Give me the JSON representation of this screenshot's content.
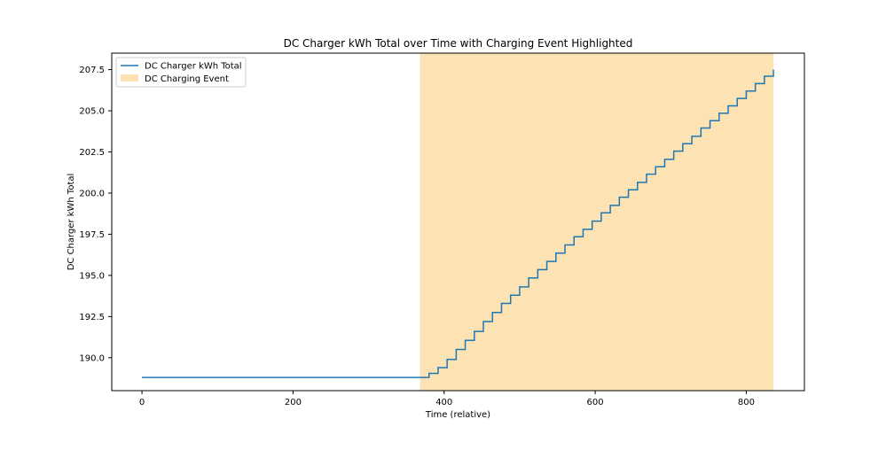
{
  "chart_data": {
    "type": "line",
    "title": "DC Charger kWh Total over Time with Charging Event Highlighted",
    "xlabel": "Time (relative)",
    "ylabel": "DC Charger kWh Total",
    "xlim": [
      -40,
      877
    ],
    "ylim": [
      188.0,
      208.5
    ],
    "xticks": [
      {
        "value": 0,
        "label": "0"
      },
      {
        "value": 200,
        "label": "200"
      },
      {
        "value": 400,
        "label": "400"
      },
      {
        "value": 600,
        "label": "600"
      },
      {
        "value": 800,
        "label": "800"
      }
    ],
    "yticks": [
      {
        "value": 190.0,
        "label": "190.0"
      },
      {
        "value": 192.5,
        "label": "192.5"
      },
      {
        "value": 195.0,
        "label": "195.0"
      },
      {
        "value": 197.5,
        "label": "197.5"
      },
      {
        "value": 200.0,
        "label": "200.0"
      },
      {
        "value": 202.5,
        "label": "202.5"
      },
      {
        "value": 205.0,
        "label": "205.0"
      },
      {
        "value": 207.5,
        "label": "207.5"
      }
    ],
    "grid": false,
    "legend_placement": "top-left",
    "series": [
      {
        "name": "DC Charger kWh Total",
        "color": "#1f77b4",
        "style": "step",
        "x": [
          0,
          368,
          380,
          392,
          404,
          416,
          428,
          440,
          452,
          464,
          476,
          488,
          500,
          512,
          524,
          536,
          548,
          560,
          572,
          584,
          596,
          608,
          620,
          632,
          644,
          656,
          668,
          680,
          692,
          704,
          716,
          728,
          740,
          752,
          764,
          776,
          788,
          800,
          812,
          824,
          836
        ],
        "y": [
          188.8,
          188.8,
          189.05,
          189.4,
          189.9,
          190.5,
          191.05,
          191.6,
          192.2,
          192.75,
          193.3,
          193.8,
          194.3,
          194.85,
          195.35,
          195.85,
          196.35,
          196.85,
          197.35,
          197.8,
          198.3,
          198.8,
          199.25,
          199.75,
          200.2,
          200.65,
          201.15,
          201.6,
          202.05,
          202.55,
          203.0,
          203.45,
          203.95,
          204.4,
          204.85,
          205.3,
          205.75,
          206.2,
          206.65,
          207.1,
          207.5
        ]
      }
    ],
    "highlight": {
      "name": "DC Charging Event",
      "x_start": 368,
      "x_end": 836,
      "color": "#fde2b3"
    }
  }
}
